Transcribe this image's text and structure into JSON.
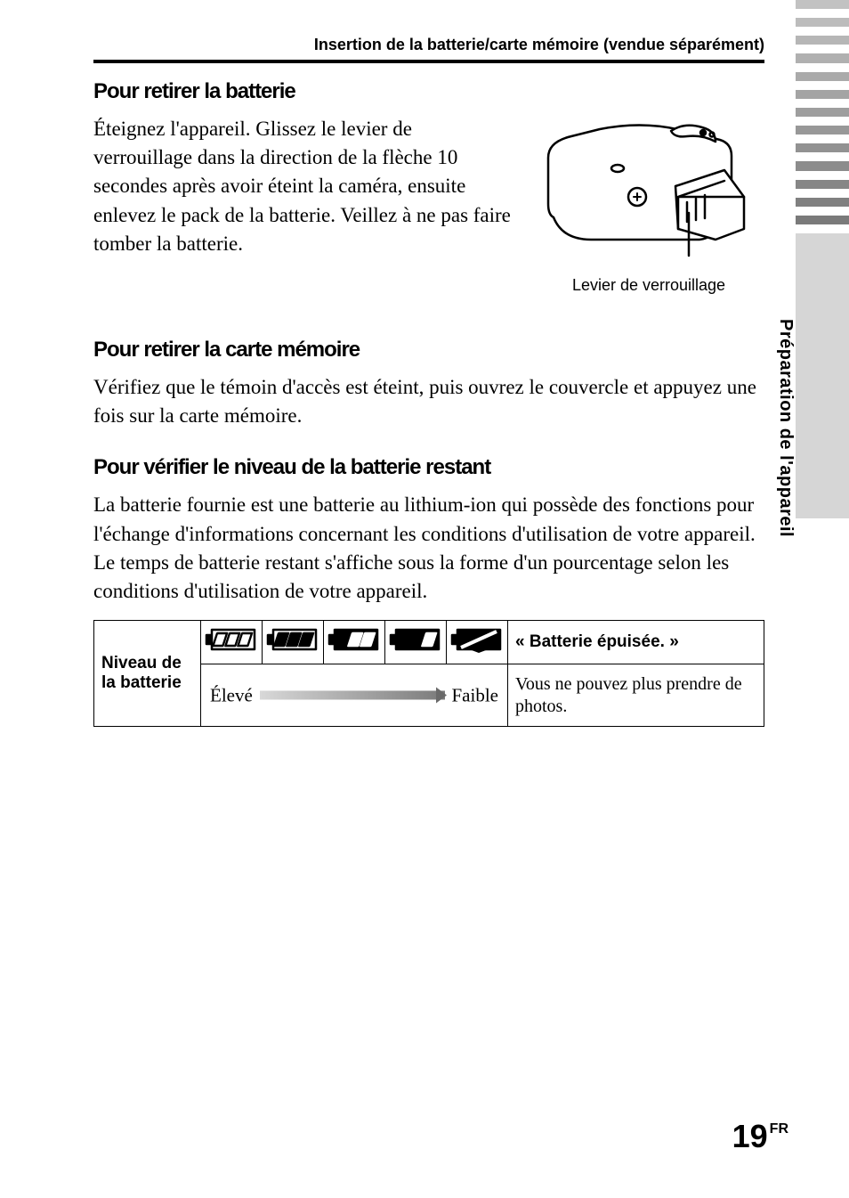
{
  "header": {
    "running_title": "Insertion de la batterie/carte mémoire (vendue séparément)"
  },
  "side": {
    "tab_color": "#d6d6d6",
    "label": "Préparation de l'appareil",
    "stripe_shades": [
      "#c2c2c2",
      "#bcbcbc",
      "#b6b6b6",
      "#b0b0b0",
      "#aaaaaa",
      "#a4a4a4",
      "#9e9e9e",
      "#989898",
      "#929292",
      "#8c8c8c",
      "#868686",
      "#808080",
      "#7a7a7a"
    ]
  },
  "sections": {
    "remove_battery": {
      "title": "Pour retirer la batterie",
      "text": "Éteignez l'appareil. Glissez le levier de verrouillage dans la direction de la flèche 10 secondes après avoir éteint la caméra, ensuite enlevez le pack de la batterie. Veillez à ne pas faire tomber la batterie.",
      "figure_caption": "Levier de verrouillage"
    },
    "remove_card": {
      "title": "Pour retirer la carte mémoire",
      "text": "Vérifiez que le témoin d'accès est éteint, puis ouvrez le couvercle et appuyez une fois sur la carte mémoire."
    },
    "battery_level": {
      "title": "Pour vérifier le niveau de la batterie restant",
      "text": "La batterie fournie est une batterie au lithium-ion qui possède des fonctions pour l'échange d'informations concernant les conditions d'utilisation de votre appareil. Le temps de batterie restant s'affiche sous la forme d'un pourcentage selon les conditions d'utilisation de votre appareil."
    }
  },
  "battery_table": {
    "row_header": "Niveau de la batterie",
    "empty_header": "« Batterie épuisée. »",
    "empty_text": "Vous ne pouvez plus prendre de photos.",
    "gradient_left": "Élevé",
    "gradient_right": "Faible",
    "icon_levels": [
      {
        "bars": 3,
        "fill_bars": 0,
        "fill_body": false
      },
      {
        "bars": 3,
        "fill_bars": 3,
        "fill_body": false
      },
      {
        "bars": 2,
        "fill_bars": 2,
        "fill_body": true
      },
      {
        "bars": 1,
        "fill_bars": 1,
        "fill_body": true
      },
      {
        "bars": 0,
        "fill_bars": 0,
        "fill_body": true,
        "slash": true
      }
    ],
    "icon_stroke": "#000000",
    "icon_fill": "#000000",
    "gradient_from": "#d8d8d8",
    "gradient_to": "#7a7a7a"
  },
  "page_number": {
    "num": "19",
    "suffix": "FR"
  },
  "typography": {
    "heading_font": "Arial",
    "body_font": "Times New Roman",
    "heading_size_pt": 18,
    "body_size_pt": 17
  }
}
